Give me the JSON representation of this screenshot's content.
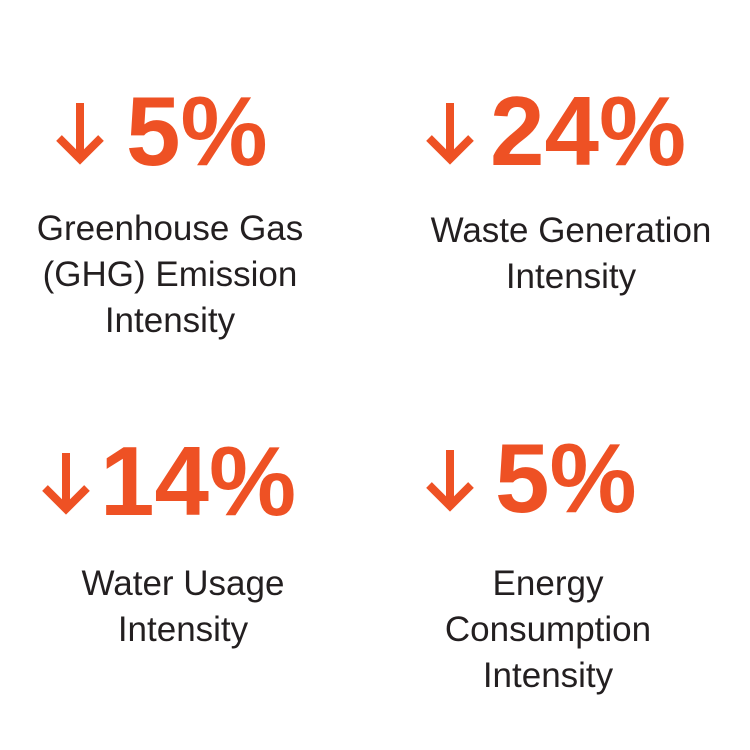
{
  "stats": [
    {
      "value": "5%",
      "label": [
        "Greenhouse Gas",
        "(GHG) Emission",
        "Intensity"
      ]
    },
    {
      "value": "24%",
      "label": [
        "Waste Generation",
        "Intensity"
      ]
    },
    {
      "value": "14%",
      "label": [
        "Water Usage",
        "Intensity"
      ]
    },
    {
      "value": "5%",
      "label": [
        "Energy",
        "Consumption",
        "Intensity"
      ]
    }
  ]
}
